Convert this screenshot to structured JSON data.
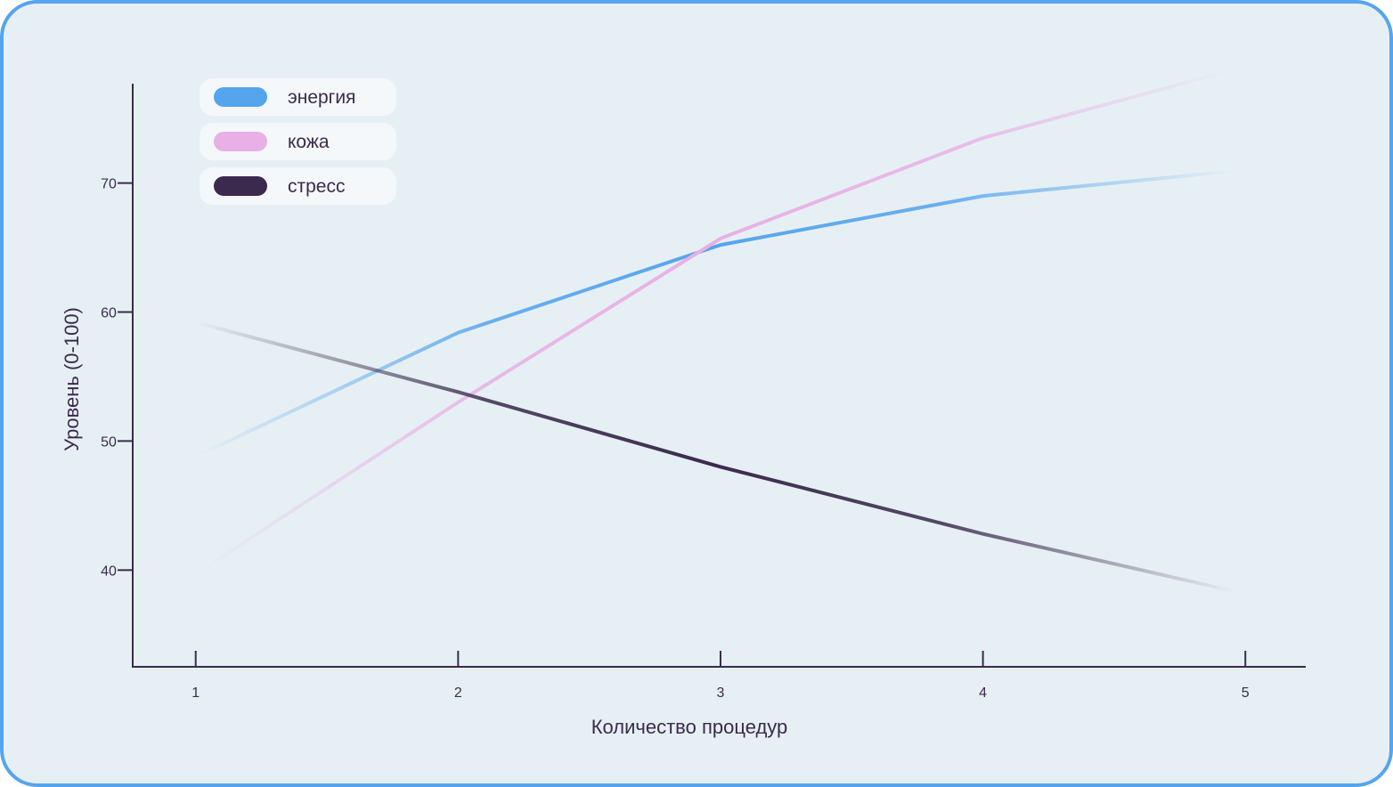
{
  "chart_data": {
    "type": "line",
    "title": "",
    "xlabel": "Количество процедур",
    "ylabel": "Уровень (0-100)",
    "x": [
      1,
      2,
      3,
      4,
      5
    ],
    "xlim": [
      0.76,
      5.23
    ],
    "ylim": [
      32.5,
      77.7
    ],
    "x_ticks": [
      "1",
      "2",
      "3",
      "4",
      "5"
    ],
    "y_ticks": [
      "40",
      "50",
      "60",
      "70"
    ],
    "grid": false,
    "legend_position": "top-left",
    "series": [
      {
        "name": "энергия",
        "color": "#55a4ee",
        "points": [
          [
            1,
            48.8
          ],
          [
            2,
            58.4
          ],
          [
            3,
            65.2
          ],
          [
            4,
            69.0
          ],
          [
            5,
            71.0
          ]
        ]
      },
      {
        "name": "кожа",
        "color": "#e8b0e6",
        "points": [
          [
            1,
            39.7
          ],
          [
            2,
            53.0
          ],
          [
            3,
            65.7
          ],
          [
            4,
            73.5
          ],
          [
            5,
            79.0
          ]
        ]
      },
      {
        "name": "стресс",
        "color": "#3b2a4d",
        "points": [
          [
            1,
            59.2
          ],
          [
            2,
            53.8
          ],
          [
            3,
            48.0
          ],
          [
            4,
            42.8
          ],
          [
            5,
            38.2
          ]
        ]
      }
    ]
  }
}
